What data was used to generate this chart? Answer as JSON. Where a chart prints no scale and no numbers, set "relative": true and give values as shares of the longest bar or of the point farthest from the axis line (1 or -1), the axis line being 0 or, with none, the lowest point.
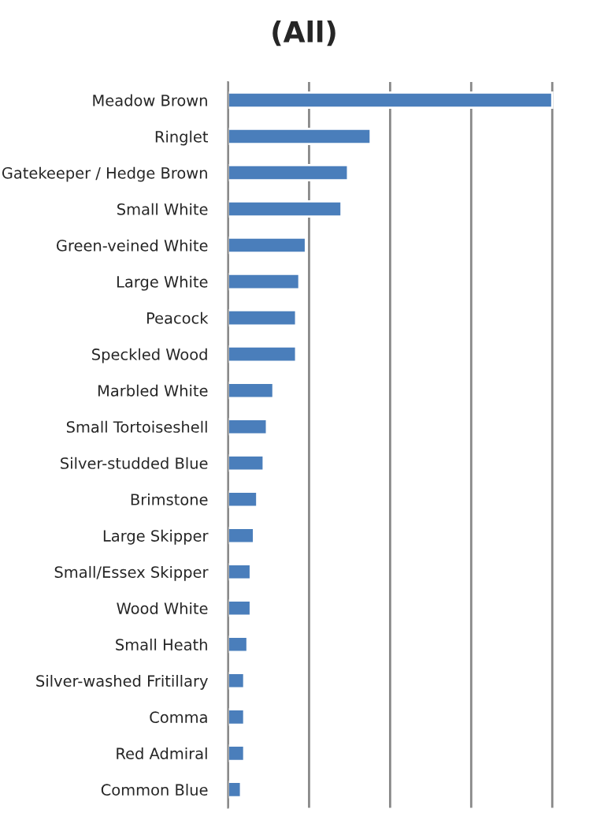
{
  "chart_data": {
    "type": "bar",
    "title": "(All)",
    "orientation": "horizontal",
    "relative": true,
    "grid": "x",
    "legend": false,
    "color": "#4a7ebb",
    "categories": [
      "Meadow Brown",
      "Ringlet",
      "Gatekeeper / Hedge Brown",
      "Small White",
      "Green-veined White",
      "Large White",
      "Peacock",
      "Speckled Wood",
      "Marbled White",
      "Small Tortoiseshell",
      "Silver-studded Blue",
      "Brimstone",
      "Large Skipper",
      "Small/Essex Skipper",
      "Wood White",
      "Small Heath",
      "Silver-washed Fritillary",
      "Comma",
      "Red Admiral",
      "Common Blue"
    ],
    "values": [
      1,
      0.44,
      0.37,
      0.35,
      0.24,
      0.22,
      0.21,
      0.21,
      0.14,
      0.12,
      0.11,
      0.09,
      0.08,
      0.07,
      0.07,
      0.06,
      0.05,
      0.05,
      0.05,
      0.04
    ]
  }
}
